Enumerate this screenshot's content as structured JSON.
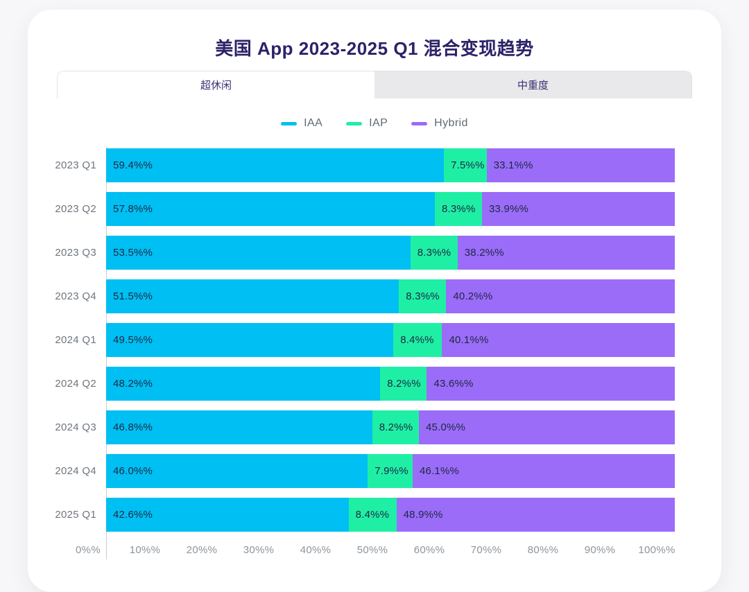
{
  "page": {
    "background": "#f7f7f9",
    "card_background": "#ffffff"
  },
  "header": {
    "title": "美国 App 2023-2025 Q1 混合变现趋势",
    "title_color": "#2b2368"
  },
  "tabs": [
    {
      "label": "超休闲",
      "active": true
    },
    {
      "label": "中重度",
      "active": false
    }
  ],
  "legend": [
    {
      "label": "IAA",
      "color": "#00bff2"
    },
    {
      "label": "IAP",
      "color": "#1fefa5"
    },
    {
      "label": "Hybrid",
      "color": "#9b6cf8"
    }
  ],
  "chart_data": {
    "type": "bar",
    "orientation": "horizontal",
    "stacked": true,
    "normalized_to_100": true,
    "title": "美国 App 2023-2025 Q1 混合变现趋势",
    "categories": [
      "2023 Q1",
      "2023 Q2",
      "2023 Q3",
      "2023 Q4",
      "2024 Q1",
      "2024 Q2",
      "2024 Q3",
      "2024 Q4",
      "2025 Q1"
    ],
    "series": [
      {
        "name": "IAA",
        "color": "#00bff2",
        "values": [
          59.4,
          57.8,
          53.5,
          51.5,
          49.5,
          48.2,
          46.8,
          46.0,
          42.6
        ],
        "labels": [
          "59.4%%",
          "57.8%%",
          "53.5%%",
          "51.5%%",
          "49.5%%",
          "48.2%%",
          "46.8%%",
          "46.0%%",
          "42.6%%"
        ]
      },
      {
        "name": "IAP",
        "color": "#1fefa5",
        "values": [
          7.5,
          8.3,
          8.3,
          8.3,
          8.4,
          8.2,
          8.2,
          7.9,
          8.4
        ],
        "labels": [
          "7.5%%",
          "8.3%%",
          "8.3%%",
          "8.3%%",
          "8.4%%",
          "8.2%%",
          "8.2%%",
          "7.9%%",
          "8.4%%"
        ]
      },
      {
        "name": "Hybrid",
        "color": "#9b6cf8",
        "values": [
          33.1,
          33.9,
          38.2,
          40.2,
          40.1,
          43.6,
          45.0,
          46.1,
          48.9
        ],
        "labels": [
          "33.1%%",
          "33.9%%",
          "38.2%%",
          "40.2%%",
          "40.1%%",
          "43.6%%",
          "45.0%%",
          "46.1%%",
          "48.9%%"
        ]
      }
    ],
    "xlabel": "",
    "ylabel": "",
    "xlim": [
      0,
      100
    ],
    "x_tick_values": [
      0,
      10,
      20,
      30,
      40,
      50,
      60,
      70,
      80,
      90,
      100
    ],
    "x_tick_labels": [
      "0%%",
      "10%%",
      "20%%",
      "30%%",
      "40%%",
      "50%%",
      "60%%",
      "70%%",
      "80%%",
      "90%%",
      "100%%"
    ],
    "grid": false,
    "legend_position": "top",
    "bar_label_color": "#1c2744",
    "category_label_color": "#6e757d",
    "tick_label_color": "#8d949b"
  }
}
